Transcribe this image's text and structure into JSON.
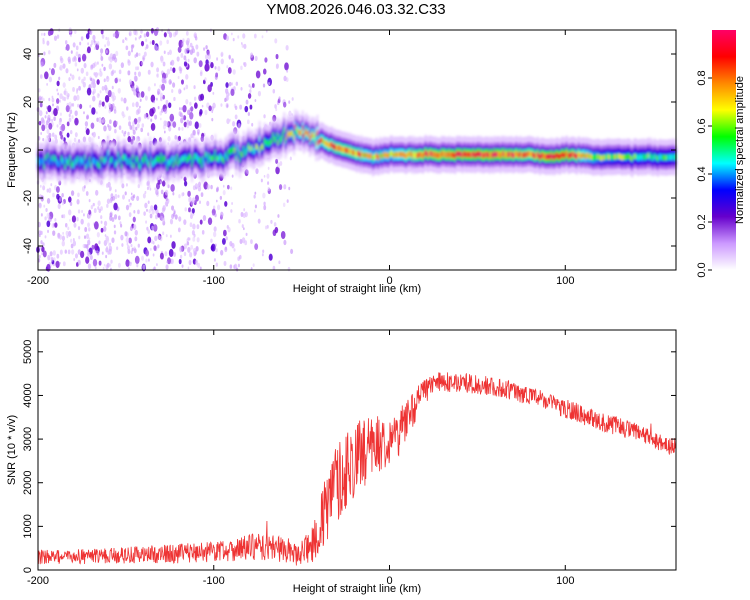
{
  "title": "YM08.2026.046.03.32.C33",
  "chart_data": [
    {
      "type": "heatmap",
      "name": "spectrogram",
      "xlabel": "Height of straight line (km)",
      "ylabel": "Frequency (Hz)",
      "xlim": [
        -200,
        163
      ],
      "ylim": [
        -50,
        50
      ],
      "xticks": [
        -200,
        -100,
        0,
        100
      ],
      "xtick_labels": [
        "-200",
        "-100",
        "0",
        "100"
      ],
      "yticks": [
        -40,
        -20,
        0,
        20,
        40
      ],
      "ytick_labels": [
        "-40",
        "-20",
        "0",
        "20",
        "40"
      ],
      "colorbar": {
        "label": "Normalized spectral amplitude",
        "range": [
          0,
          1
        ],
        "ticks": [
          0.0,
          0.2,
          0.4,
          0.6,
          0.8
        ],
        "tick_labels": [
          "0.0",
          "0.2",
          "0.4",
          "0.6",
          "0.8"
        ],
        "colors": [
          "#ffffff",
          "#cc99ff",
          "#6600cc",
          "#0000ff",
          "#00ffff",
          "#00ff00",
          "#ffff00",
          "#ff8800",
          "#ff0000",
          "#ff0066"
        ]
      },
      "ridge_frequency": {
        "height_km": [
          -200,
          -160,
          -120,
          -100,
          -80,
          -70,
          -60,
          -50,
          -40,
          -30,
          -20,
          -10,
          0,
          20,
          60,
          80,
          90,
          100,
          120,
          163
        ],
        "frequency_hz": [
          -5,
          -5,
          -4,
          -3,
          0,
          3,
          6,
          8,
          4,
          1,
          -1,
          -3,
          -2,
          -2,
          -2,
          -2,
          -3,
          -2,
          -3,
          -3
        ],
        "peak_amplitude": [
          0.45,
          0.45,
          0.5,
          0.5,
          0.55,
          0.55,
          0.6,
          0.75,
          0.75,
          0.8,
          0.8,
          0.7,
          0.7,
          0.85,
          0.9,
          0.8,
          0.9,
          0.9,
          0.6,
          0.5
        ]
      }
    },
    {
      "type": "line",
      "name": "snr",
      "xlabel": "Height of straight line (km)",
      "ylabel": "SNR (10 * v/v)",
      "xlim": [
        -200,
        163
      ],
      "ylim": [
        0,
        5500
      ],
      "xticks": [
        -200,
        -100,
        0,
        100
      ],
      "xtick_labels": [
        "-200",
        "-100",
        "0",
        "100"
      ],
      "yticks": [
        0,
        1000,
        2000,
        3000,
        4000,
        5000
      ],
      "ytick_labels": [
        "0",
        "1000",
        "2000",
        "3000",
        "4000",
        "5000"
      ],
      "color": "#ee3333",
      "series": [
        {
          "name": "SNR",
          "x": [
            -200,
            -180,
            -160,
            -140,
            -120,
            -100,
            -90,
            -80,
            -70,
            -60,
            -55,
            -50,
            -45,
            -40,
            -35,
            -30,
            -25,
            -20,
            -15,
            -10,
            -5,
            0,
            5,
            10,
            15,
            20,
            25,
            30,
            40,
            50,
            60,
            70,
            80,
            90,
            100,
            110,
            120,
            130,
            140,
            150,
            163
          ],
          "y": [
            300,
            300,
            330,
            350,
            380,
            430,
            470,
            520,
            520,
            480,
            400,
            300,
            600,
            900,
            1500,
            2000,
            2300,
            2500,
            2700,
            2800,
            2900,
            3000,
            3100,
            3500,
            3800,
            4100,
            4250,
            4300,
            4300,
            4250,
            4200,
            4100,
            4000,
            3850,
            3700,
            3550,
            3400,
            3300,
            3150,
            3000,
            2800
          ],
          "noise_amplitude": [
            170,
            170,
            180,
            200,
            220,
            250,
            270,
            300,
            320,
            300,
            280,
            250,
            450,
            700,
            900,
            950,
            900,
            850,
            800,
            750,
            650,
            550,
            500,
            450,
            400,
            300,
            250,
            230,
            230,
            220,
            220,
            220,
            220,
            220,
            220,
            220,
            220,
            220,
            220,
            220,
            220
          ]
        }
      ]
    }
  ]
}
